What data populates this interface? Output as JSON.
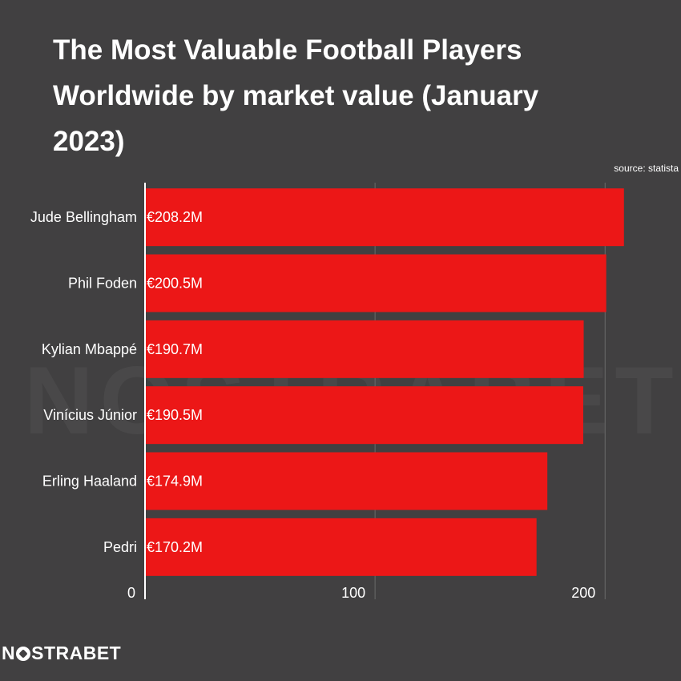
{
  "title": "The Most Valuable Football Players Worldwide by market value (January 2023)",
  "source": "source: statista",
  "watermark": "NOSTRABET",
  "logo": {
    "pre": "N",
    "post": "STRABET"
  },
  "colors": {
    "background": "#414041",
    "bar": "#ec1717",
    "grid": "#6a6a6a",
    "axis": "#ffffff"
  },
  "chart_data": {
    "type": "bar",
    "orientation": "horizontal",
    "categories": [
      "Jude Bellingham",
      "Phil Foden",
      "Kylian Mbappé",
      "Vinícius Júnior",
      "Erling Haaland",
      "Pedri"
    ],
    "values": [
      208.2,
      200.5,
      190.7,
      190.5,
      174.9,
      170.2
    ],
    "value_labels": [
      "€208.2M",
      "€200.5M",
      "€190.7M",
      "€190.5M",
      "€174.9M",
      "€170.2M"
    ],
    "x_ticks": [
      "0",
      "100",
      "200"
    ],
    "x_tick_values": [
      0,
      100,
      200
    ],
    "xlim": [
      0,
      233
    ],
    "grid": true
  }
}
